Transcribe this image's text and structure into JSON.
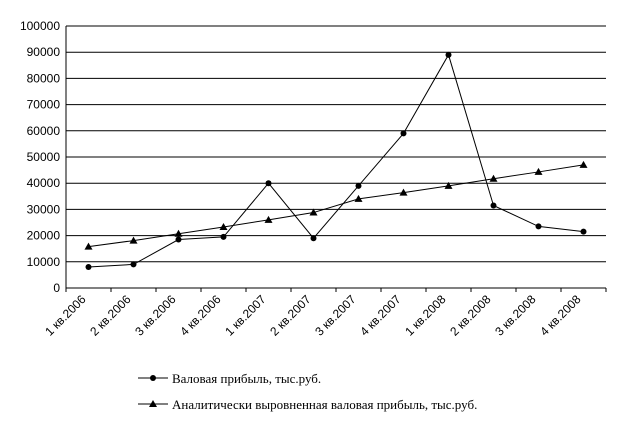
{
  "chart_data": {
    "type": "line",
    "categories": [
      "1 кв.2006",
      "2 кв.2006",
      "3 кв.2006",
      "4 кв.2006",
      "1 кв.2007",
      "2 кв.2007",
      "3 кв.2007",
      "4 кв.2007",
      "1 кв.2008",
      "2 кв.2008",
      "3 кв.2008",
      "4 кв.2008"
    ],
    "y_ticks": [
      "0",
      "10000",
      "20000",
      "30000",
      "40000",
      "50000",
      "60000",
      "70000",
      "80000",
      "90000",
      "100000"
    ],
    "ylim": [
      0,
      100000
    ],
    "grid": "horizontal",
    "legend_position": "bottom",
    "series": [
      {
        "name": "Валовая прибыль, тыс.руб.",
        "marker": "circle",
        "values": [
          8000,
          9000,
          18500,
          19500,
          40000,
          19000,
          39000,
          59000,
          89000,
          31500,
          23500,
          21500
        ]
      },
      {
        "name": "Аналитически выровненная валовая прибыль, тыс.руб.",
        "marker": "triangle",
        "values": [
          15800,
          18100,
          20700,
          23300,
          26000,
          28800,
          34000,
          36400,
          39000,
          41700,
          44300,
          47000
        ]
      }
    ],
    "colors": {
      "line": "#000000",
      "grid": "#000000",
      "background": "#ffffff"
    }
  }
}
